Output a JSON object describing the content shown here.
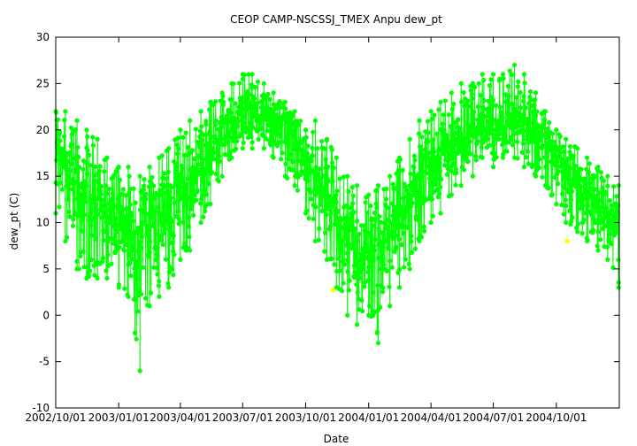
{
  "chart_data": {
    "type": "scatter",
    "title": "CEOP CAMP-NSCSSJ_TMEX Anpu  dew_pt",
    "xlabel": "Date",
    "ylabel": "dew_pt (C)",
    "xlim": [
      "2002-10-01",
      "2005-01-01"
    ],
    "ylim": [
      -10,
      30
    ],
    "y_ticks": [
      "30",
      "25",
      "20",
      "15",
      "10",
      "5",
      "0",
      "-5",
      "-10"
    ],
    "x_ticks": [
      "2002/10/01",
      "2003/01/01",
      "2003/04/01",
      "2003/07/01",
      "2003/10/01",
      "2004/01/01",
      "2004/04/01",
      "2004/07/01",
      "2004/10/01"
    ],
    "grid": false,
    "legend": "none",
    "colors": {
      "series": "#00ff00",
      "flagged": "#ffff00"
    },
    "series": [
      {
        "style": "line+points",
        "x": [
          "2002-10-01",
          "2002-10-15",
          "2002-11-01",
          "2002-11-15",
          "2002-12-01",
          "2002-12-15",
          "2003-01-01",
          "2003-01-15",
          "2003-02-01",
          "2003-02-15",
          "2003-03-01",
          "2003-03-15",
          "2003-04-01",
          "2003-04-15",
          "2003-05-01",
          "2003-05-15",
          "2003-06-01",
          "2003-06-15",
          "2003-07-01",
          "2003-07-15",
          "2003-08-01",
          "2003-08-15",
          "2003-09-01",
          "2003-09-15",
          "2003-10-01",
          "2003-10-15",
          "2003-11-01",
          "2003-11-15",
          "2003-12-01",
          "2003-12-15",
          "2004-01-01",
          "2004-01-15",
          "2004-02-01",
          "2004-02-15",
          "2004-03-01",
          "2004-03-15",
          "2004-04-01",
          "2004-04-15",
          "2004-05-01",
          "2004-05-15",
          "2004-06-01",
          "2004-06-15",
          "2004-07-01",
          "2004-07-15",
          "2004-08-01",
          "2004-08-15",
          "2004-09-01",
          "2004-09-15",
          "2004-10-01",
          "2004-10-15",
          "2004-11-01",
          "2004-11-15",
          "2004-12-01",
          "2004-12-15",
          "2004-12-31"
        ],
        "center": [
          18,
          17,
          15,
          13,
          12,
          11,
          10,
          10,
          9,
          10,
          11,
          12,
          14,
          15,
          17,
          18,
          19,
          20,
          21,
          22,
          22,
          21,
          21,
          20,
          17,
          15,
          13,
          11,
          9,
          8,
          7,
          8,
          9,
          11,
          13,
          15,
          16,
          17,
          18,
          19,
          20,
          20,
          21,
          21,
          21,
          21,
          20,
          19,
          17,
          16,
          14,
          13,
          12,
          11,
          10
        ],
        "min": [
          11,
          8,
          5,
          4,
          4,
          4,
          3,
          2,
          -6,
          1,
          2,
          3,
          6,
          7,
          10,
          12,
          15,
          17,
          18,
          18,
          18,
          17,
          15,
          14,
          11,
          8,
          6,
          3,
          0,
          -1,
          0,
          -3,
          1,
          3,
          5,
          8,
          10,
          11,
          13,
          14,
          15,
          17,
          16,
          17,
          17,
          16,
          15,
          14,
          12,
          10,
          9,
          8,
          7,
          6,
          3
        ],
        "max": [
          22,
          22,
          21,
          20,
          19,
          17,
          16,
          16,
          15,
          16,
          17,
          18,
          20,
          21,
          22,
          23,
          24,
          25,
          26,
          26,
          25,
          24,
          23,
          22,
          20,
          21,
          19,
          17,
          15,
          14,
          13,
          14,
          15,
          17,
          19,
          21,
          22,
          23,
          24,
          25,
          25,
          26,
          26,
          26,
          27,
          26,
          24,
          22,
          20,
          19,
          18,
          17,
          16,
          15,
          14
        ]
      },
      {
        "style": "points",
        "flagged": true,
        "x": [
          "2003-11-10",
          "2004-10-17"
        ],
        "y": [
          2.7,
          8.0
        ]
      }
    ]
  }
}
